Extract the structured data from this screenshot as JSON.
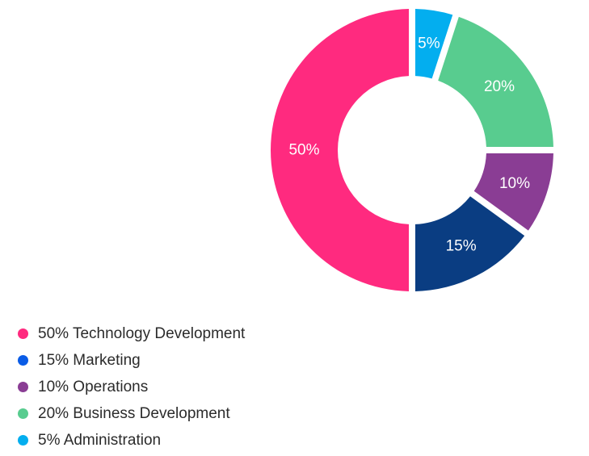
{
  "chart_data": {
    "type": "pie",
    "donut": true,
    "start_angle_deg": 0,
    "direction": "counterclockwise",
    "slices": [
      {
        "label": "50%",
        "legend": "50% Technology Development",
        "value": 50,
        "color": "#ff2a7f"
      },
      {
        "label": "15%",
        "legend": "15% Marketing",
        "value": 15,
        "color": "#0a3d82",
        "legend_color": "#0a5ce6"
      },
      {
        "label": "10%",
        "legend": "10% Operations",
        "value": 10,
        "color": "#8a3d94"
      },
      {
        "label": "20%",
        "legend": "20% Business Development",
        "value": 20,
        "color": "#58cc8f"
      },
      {
        "label": "5%",
        "legend": "5% Administration",
        "value": 5,
        "color": "#03aeef"
      }
    ],
    "draw_order": [
      0,
      1,
      3,
      4,
      2
    ],
    "legend_position": "bottom-left"
  }
}
